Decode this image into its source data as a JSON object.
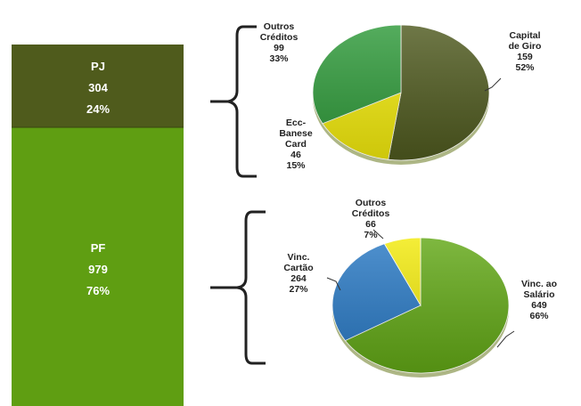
{
  "colors": {
    "pj_block": "#4f5b1c",
    "pf_block": "#5f9e12",
    "capital_giro": "#4f5a1f",
    "outros_creditos_pj": "#2f9a3a",
    "ecc_banese": "#f2ea0c",
    "vinc_salario": "#62a816",
    "vinc_cartao": "#2979c4",
    "outros_creditos_pf": "#f2ea0c",
    "bracket": "#222222"
  },
  "chart_data": [
    {
      "type": "bar",
      "stacked": true,
      "categories": [
        "PJ",
        "PF"
      ],
      "values": [
        304,
        979
      ],
      "percent_labels": [
        "24%",
        "76%"
      ]
    },
    {
      "type": "pie",
      "slices": [
        {
          "label": [
            "Capital",
            "de Giro"
          ],
          "value": 159,
          "percent": "52%",
          "color_key": "capital_giro"
        },
        {
          "label": [
            "Ecc-",
            "Banese",
            "Card"
          ],
          "value": 46,
          "percent": "15%",
          "color_key": "ecc_banese"
        },
        {
          "label": [
            "Outros",
            "Créditos"
          ],
          "value": 99,
          "percent": "33%",
          "color_key": "outros_creditos_pj"
        }
      ]
    },
    {
      "type": "pie",
      "slices": [
        {
          "label": [
            "Vinc. ao",
            "Salário"
          ],
          "value": 649,
          "percent": "66%",
          "color_key": "vinc_salario"
        },
        {
          "label": [
            "Vinc.",
            "Cartão"
          ],
          "value": 264,
          "percent": "27%",
          "color_key": "vinc_cartao"
        },
        {
          "label": [
            "Outros",
            "Créditos"
          ],
          "value": 66,
          "percent": "7%",
          "color_key": "outros_creditos_pf"
        }
      ]
    }
  ]
}
